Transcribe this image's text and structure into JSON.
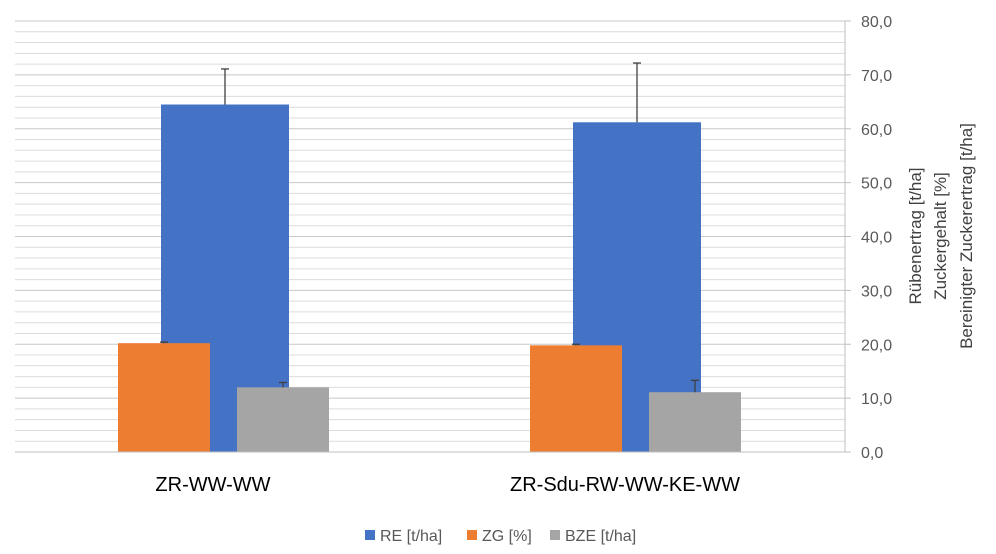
{
  "chart_data": {
    "type": "bar",
    "categories": [
      "ZR-WW-WW",
      "ZR-Sdu-RW-WW-KE-WW"
    ],
    "series": [
      {
        "name": "RE [t/ha]",
        "values": [
          64.5,
          61.2
        ],
        "errors": [
          6.6,
          11.0
        ],
        "color": "#4472C4"
      },
      {
        "name": "ZG [%]",
        "values": [
          20.2,
          19.8
        ],
        "errors": [
          0.2,
          0.2
        ],
        "color": "#ED7D31"
      },
      {
        "name": "BZE [t/ha]",
        "values": [
          12.0,
          11.1
        ],
        "errors": [
          0.9,
          2.2
        ],
        "color": "#A5A5A5"
      }
    ],
    "ylim": [
      0,
      80
    ],
    "y_ticks": [
      "0,0",
      "10,0",
      "20,0",
      "30,0",
      "40,0",
      "50,0",
      "60,0",
      "70,0",
      "80,0"
    ],
    "y_axis_side": "right",
    "y_axis_titles": [
      "Rübenertrag [t/ha]",
      "Zuckergehalt [%]",
      "Bereinigter Zuckerertrag [t/ha]"
    ],
    "grid": true,
    "legend_position": "bottom"
  }
}
